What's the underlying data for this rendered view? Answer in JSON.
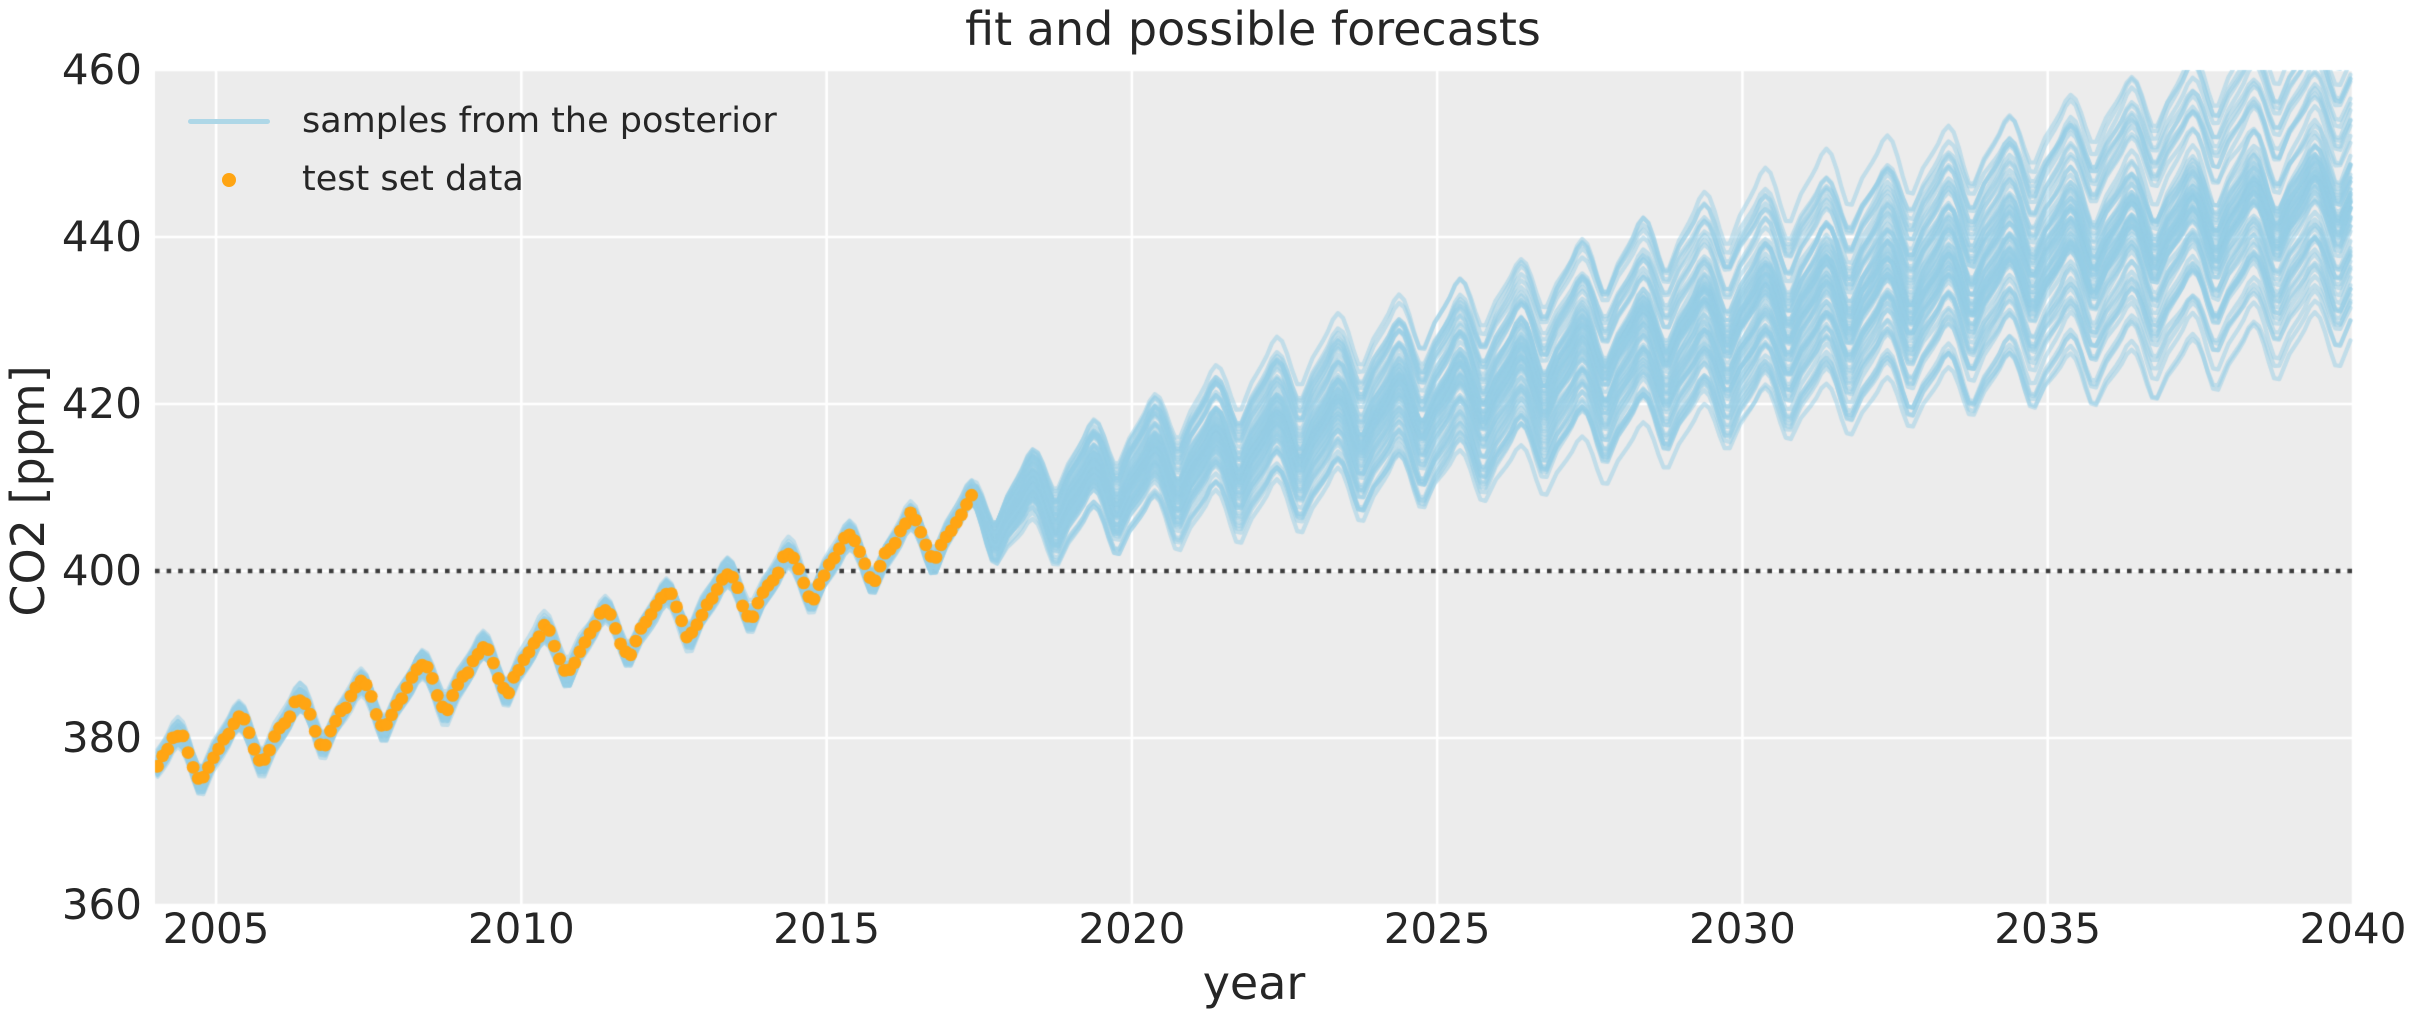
{
  "chart": {
    "title": "fit and possible forecasts",
    "xlabel": "year",
    "ylabel": "CO2 [ppm]",
    "legend": [
      {
        "label": "samples from the posterior",
        "marker": "line",
        "color": "#aed7e7"
      },
      {
        "label": "test set data",
        "marker": "dot",
        "color": "#ffa513"
      }
    ]
  },
  "chart_data": {
    "type": "line",
    "title": "fit and possible forecasts",
    "xlabel": "year",
    "ylabel": "CO2 [ppm]",
    "xlim": [
      2004,
      2040
    ],
    "ylim": [
      360,
      460
    ],
    "xticks": [
      2005,
      2010,
      2015,
      2020,
      2025,
      2030,
      2035,
      2040
    ],
    "yticks": [
      360,
      380,
      400,
      420,
      440,
      460
    ],
    "grid": true,
    "legend_position": "upper left",
    "reference_line": {
      "y": 400,
      "style": "dotted",
      "color": "#3d3d3d"
    },
    "colors": {
      "plot_background": "#ececec",
      "gridline": "#ffffff",
      "posterior_sample": "#96cde6",
      "posterior_alpha": 0.5,
      "test_data": "#ffa513",
      "text": "#262626"
    },
    "series": [
      {
        "name": "samples from the posterior",
        "kind": "posterior_samples",
        "n_samples": 70,
        "x_start": 2004.0,
        "x_end": 2040.0,
        "step_years": 0.08333,
        "fit_end": 2017.42,
        "fit_trend": {
          "value_2004": 376.9,
          "slope_per_year": 2.02,
          "quad": 0.012
        },
        "fit_band_halfwidth_ppm": 2.5,
        "forecast_trend": {
          "value_at_fit_end": 406.2,
          "slope_per_year": 2.1,
          "quad": -0.0145
        },
        "forecast_halfspread_2040_ppm": 19,
        "seasonal_monthly_offsets": [
          -0.2,
          0.5,
          1.3,
          2.4,
          2.9,
          2.2,
          0.6,
          -1.4,
          -3.1,
          -3.3,
          -2.1,
          -0.9
        ],
        "envelope_by_year": {
          "2018": [
            403,
            413
          ],
          "2020": [
            398,
            420
          ],
          "2025": [
            403,
            431
          ],
          "2030": [
            407,
            447
          ],
          "2035": [
            415,
            458
          ],
          "2040": [
            423,
            468
          ]
        }
      },
      {
        "name": "test set data",
        "kind": "scatter",
        "x_start": 2004.0,
        "x_end": 2017.42,
        "interval": "monthly",
        "n_points": 161,
        "first_value": 376.8,
        "last_value": 409.5,
        "trend": {
          "value_2004": 376.9,
          "slope_per_year": 2.02,
          "quad": 0.012
        },
        "seasonal_monthly_offsets": [
          -0.2,
          0.5,
          1.3,
          2.4,
          2.9,
          2.2,
          0.6,
          -1.4,
          -3.1,
          -3.3,
          -2.1,
          -0.9
        ],
        "marker_radius_px": 6.4
      }
    ]
  }
}
